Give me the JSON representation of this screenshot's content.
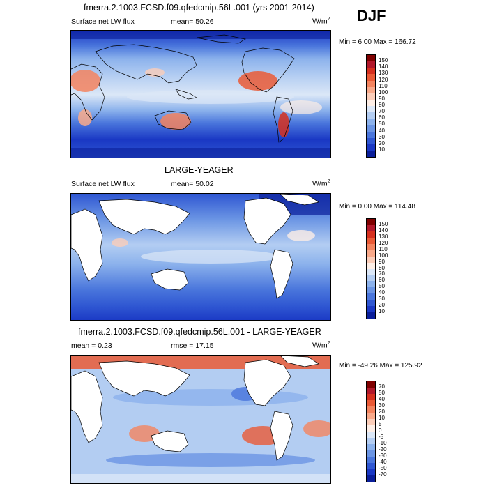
{
  "season": "DJF",
  "panels": [
    {
      "title": "fmerra.2.1003.FCSD.f09.qfedcmip.56L.001 (yrs 2001-2014)",
      "variable": "Surface net LW flux",
      "stat_left": "",
      "stat_mid": "mean=  50.26",
      "units": "W/m",
      "units_sup": "2",
      "minmax": "Min =   6.00 Max = 166.72",
      "colorbar_labels": [
        "150",
        "140",
        "130",
        "120",
        "110",
        "100",
        "90",
        "80",
        "70",
        "60",
        "50",
        "40",
        "30",
        "20",
        "10"
      ],
      "colorbar_colors": [
        "#7f0000",
        "#b2182b",
        "#d6301f",
        "#ea5a36",
        "#f4845f",
        "#f9a98a",
        "#fbcdb9",
        "#fdeee6",
        "#dbe7f7",
        "#b3cdf2",
        "#8cb2ec",
        "#6b95e4",
        "#4a76dc",
        "#2f57d2",
        "#1a38c4",
        "#0a1e9a"
      ]
    },
    {
      "title": "LARGE-YEAGER",
      "variable": "Surface net LW flux",
      "stat_left": "",
      "stat_mid": "mean=  50.02",
      "units": "W/m",
      "units_sup": "2",
      "minmax": "Min =   0.00 Max = 114.48",
      "colorbar_labels": [
        "150",
        "140",
        "130",
        "120",
        "110",
        "100",
        "90",
        "80",
        "70",
        "60",
        "50",
        "40",
        "30",
        "20",
        "10"
      ],
      "colorbar_colors": [
        "#7f0000",
        "#b2182b",
        "#d6301f",
        "#ea5a36",
        "#f4845f",
        "#f9a98a",
        "#fbcdb9",
        "#fdeee6",
        "#dbe7f7",
        "#b3cdf2",
        "#8cb2ec",
        "#6b95e4",
        "#4a76dc",
        "#2f57d2",
        "#1a38c4",
        "#0a1e9a"
      ]
    },
    {
      "title": "fmerra.2.1003.FCSD.f09.qfedcmip.56L.001 - LARGE-YEAGER",
      "variable": "",
      "stat_left": "mean =   0.23",
      "stat_mid": "rmse =  17.15",
      "units": "W/m",
      "units_sup": "2",
      "minmax": "Min = -49.26 Max = 125.92",
      "colorbar_labels": [
        "70",
        "50",
        "40",
        "30",
        "20",
        "10",
        "5",
        "0",
        "-5",
        "-10",
        "-20",
        "-30",
        "-40",
        "-50",
        "-70"
      ],
      "colorbar_colors": [
        "#7f0000",
        "#b2182b",
        "#d6301f",
        "#ea5a36",
        "#f4845f",
        "#f9a98a",
        "#fbcdb9",
        "#fdeee6",
        "#dbe7f7",
        "#b3cdf2",
        "#8cb2ec",
        "#6b95e4",
        "#4a76dc",
        "#2f57d2",
        "#1a38c4",
        "#0a1e9a"
      ]
    }
  ]
}
